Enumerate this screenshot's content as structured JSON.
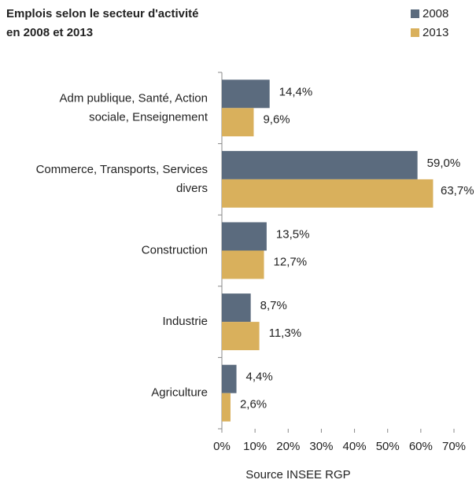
{
  "chart_data": {
    "type": "barh",
    "title": "Emplois selon le secteur d'activité\nen 2008 et 2013",
    "source": "Source INSEE RGP",
    "categories": [
      "Adm publique, Santé, Action\nsociale, Enseignement",
      "Commerce, Transports, Services\ndivers",
      "Construction",
      "Industrie",
      "Agriculture"
    ],
    "series": [
      {
        "name": "2008",
        "color": "#5b6b7e",
        "values": [
          14.4,
          59.0,
          13.5,
          8.7,
          4.4
        ],
        "value_labels": [
          "14,4%",
          "59,0%",
          "13,5%",
          "8,7%",
          "4,4%"
        ]
      },
      {
        "name": "2013",
        "color": "#d9b05c",
        "values": [
          9.6,
          63.7,
          12.7,
          11.3,
          2.6
        ],
        "value_labels": [
          "9,6%",
          "63,7%",
          "12,7%",
          "11,3%",
          "2,6%"
        ]
      }
    ],
    "xlim": [
      0,
      70
    ],
    "xticks": [
      {
        "value": 0,
        "label": "0%"
      },
      {
        "value": 10,
        "label": "10%"
      },
      {
        "value": 20,
        "label": "20%"
      },
      {
        "value": 30,
        "label": "30%"
      },
      {
        "value": 40,
        "label": "40%"
      },
      {
        "value": 50,
        "label": "50%"
      },
      {
        "value": 60,
        "label": "60%"
      },
      {
        "value": 70,
        "label": "70%"
      }
    ],
    "legend": "top-right"
  }
}
